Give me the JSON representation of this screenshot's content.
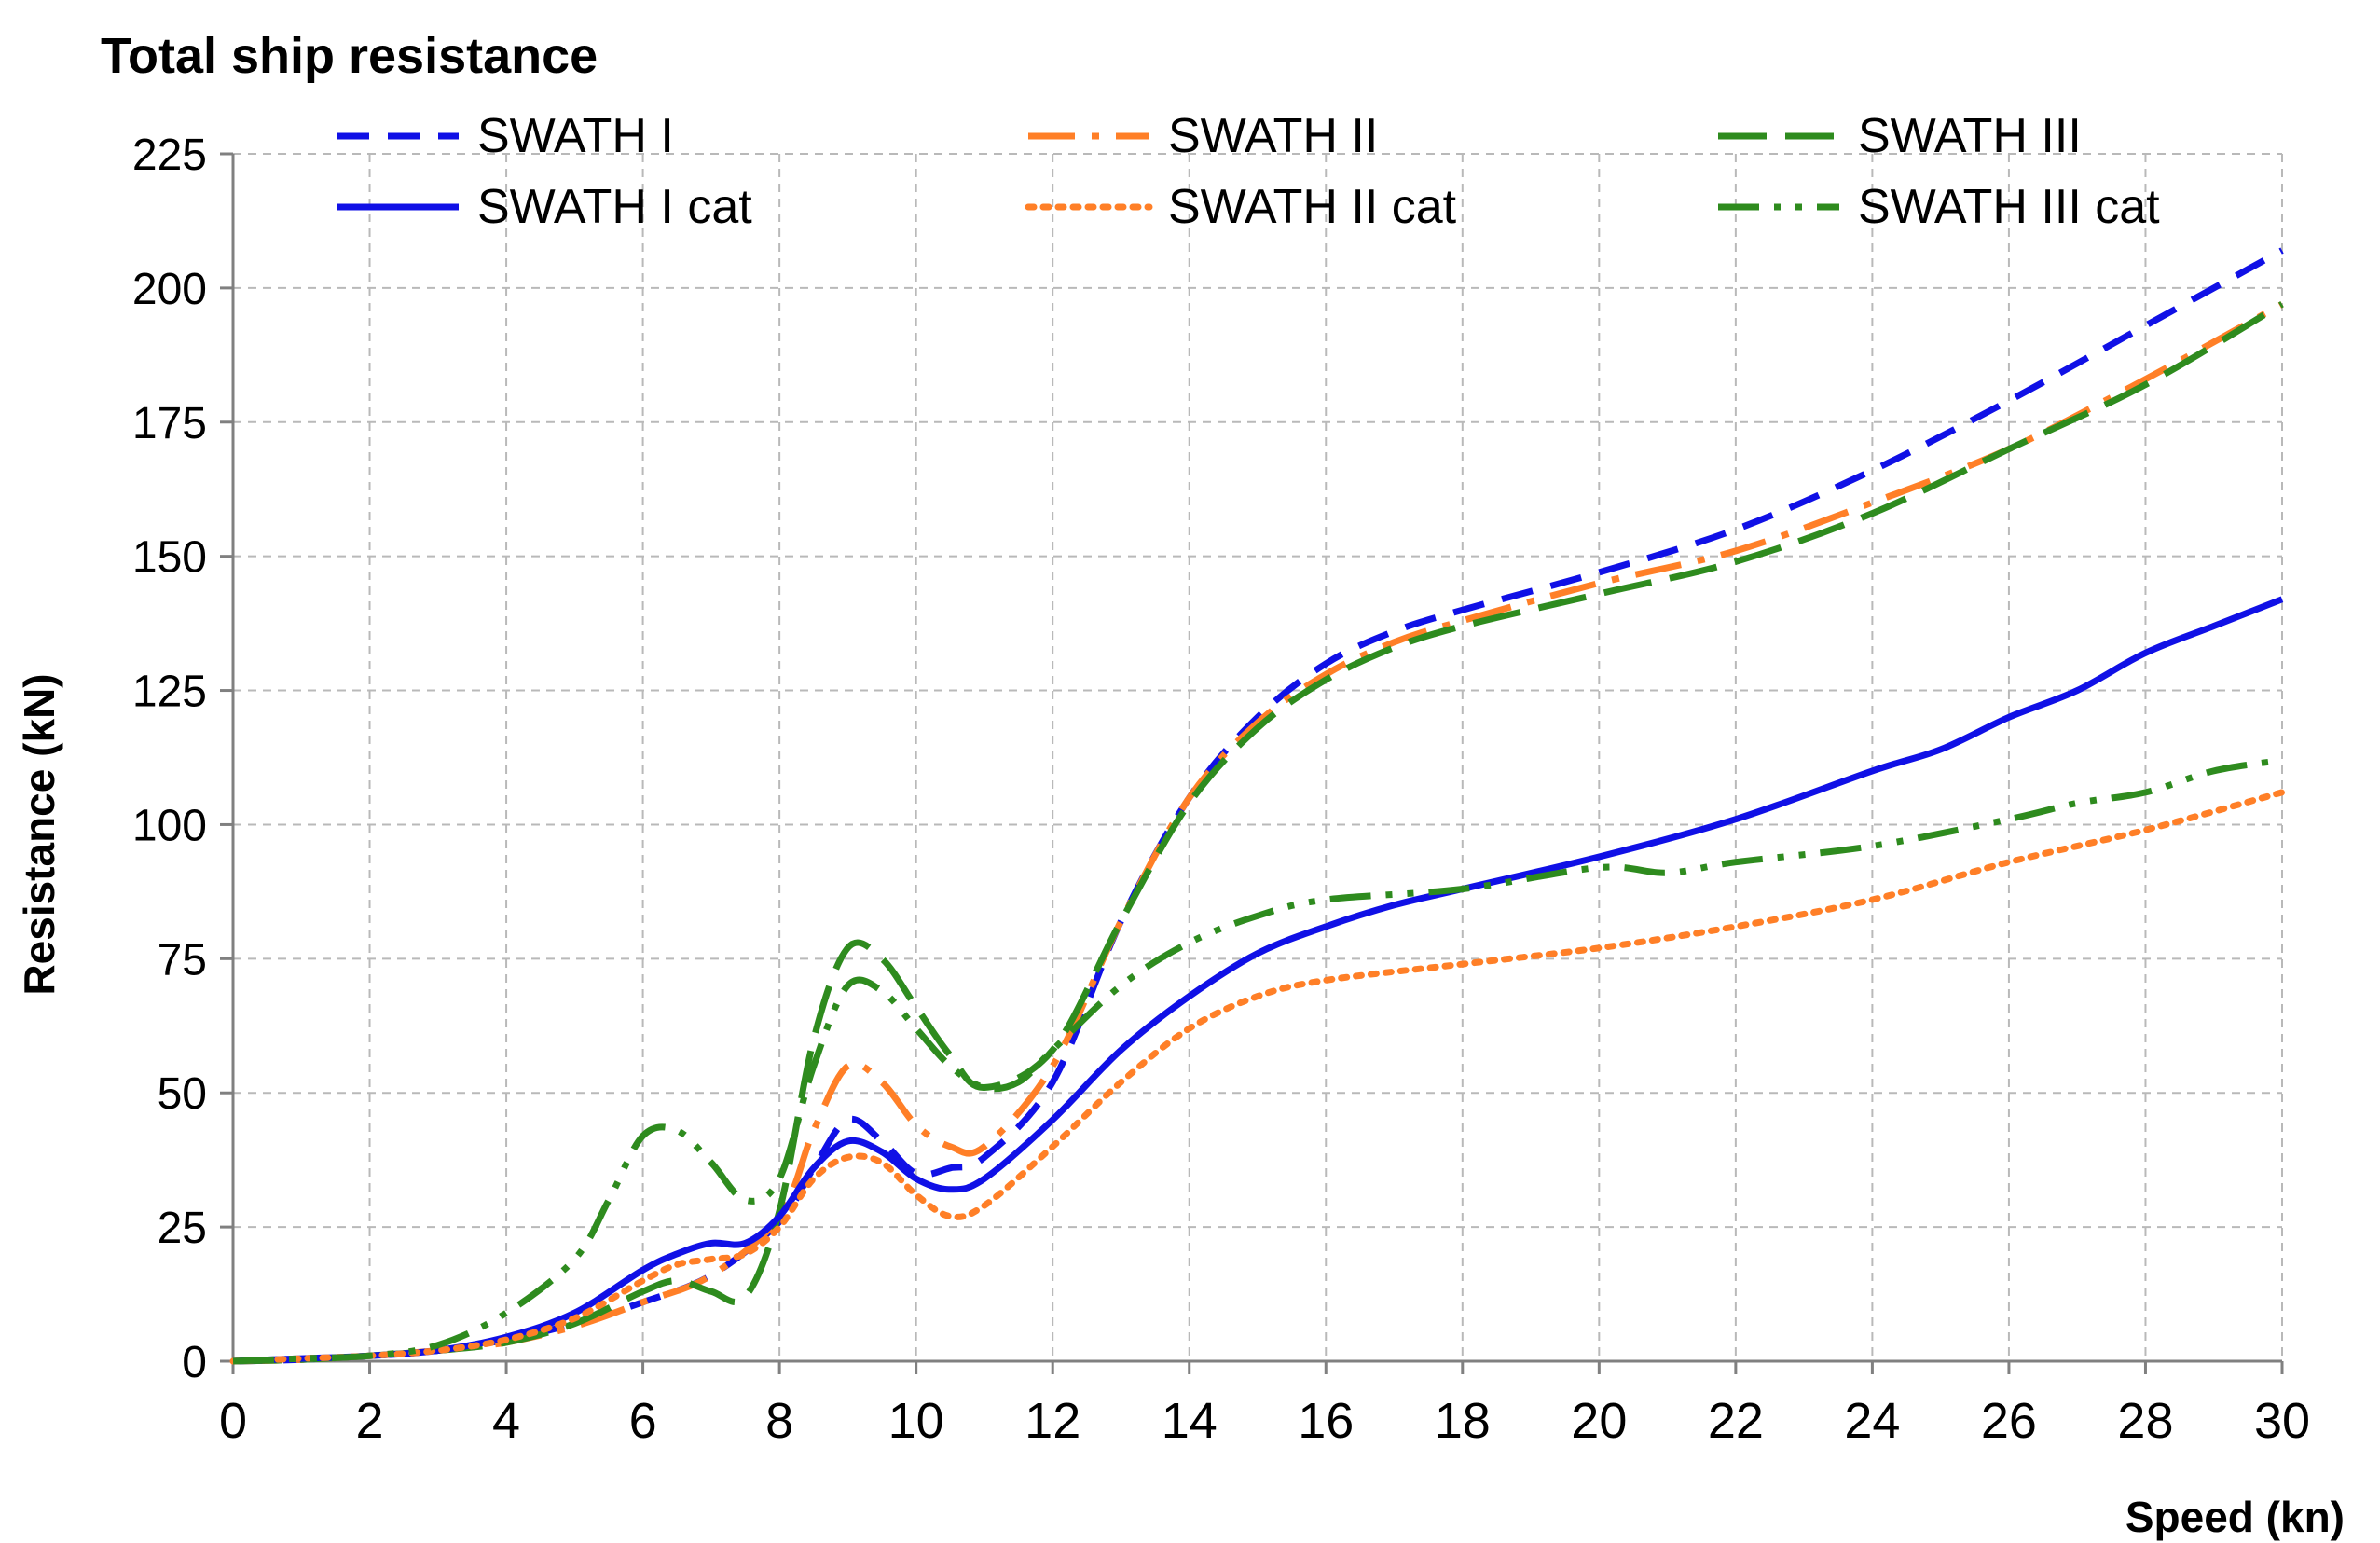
{
  "chart_data": {
    "type": "line",
    "title": "Total ship resistance",
    "xlabel": "Speed (kn)",
    "ylabel": "Resistance  (kN)",
    "xlim": [
      0,
      30
    ],
    "ylim": [
      0,
      225
    ],
    "xticks": [
      0,
      2,
      4,
      6,
      8,
      10,
      12,
      14,
      16,
      18,
      20,
      22,
      24,
      26,
      28,
      30
    ],
    "yticks": [
      0,
      25,
      50,
      75,
      100,
      125,
      150,
      175,
      200,
      225
    ],
    "grid": true,
    "legend_position": "top",
    "series": [
      {
        "name": "SWATH I",
        "color": "#1010e6",
        "style": "dashed",
        "x": [
          0,
          1,
          2,
          3,
          4,
          5,
          6,
          7,
          8,
          8.5,
          9,
          9.5,
          10,
          10.5,
          11,
          12,
          13,
          14,
          15,
          16,
          17,
          18,
          20,
          22,
          24,
          26,
          28,
          30
        ],
        "y": [
          0,
          0.3,
          1,
          2,
          4,
          7,
          11,
          16,
          26,
          36,
          45,
          41,
          35,
          36,
          38,
          52,
          82,
          105,
          120,
          130,
          136,
          140,
          147,
          155,
          166,
          179,
          193,
          207
        ]
      },
      {
        "name": "SWATH II",
        "color": "#ff7f27",
        "style": "long-dash-dot",
        "x": [
          0,
          1,
          2,
          3,
          4,
          5,
          6,
          7,
          8,
          8.5,
          9,
          9.5,
          10,
          10.5,
          11,
          12,
          13,
          14,
          15,
          16,
          17,
          18,
          20,
          22,
          24,
          26,
          28,
          30
        ],
        "y": [
          0,
          0.3,
          1,
          2,
          3.5,
          6.5,
          11,
          16,
          27,
          43,
          55,
          52,
          44,
          40,
          40,
          55,
          82,
          105,
          119,
          128,
          134,
          138,
          145,
          151,
          160,
          170,
          183,
          197
        ]
      },
      {
        "name": "SWATH III",
        "color": "#2e8b1e",
        "style": "long-dash",
        "x": [
          0,
          1,
          2,
          3,
          4,
          5,
          6,
          6.5,
          7,
          7.5,
          8,
          8.5,
          9,
          9.5,
          10,
          10.5,
          11,
          12,
          13,
          14,
          15,
          16,
          17,
          18,
          20,
          22,
          24,
          26,
          28,
          30
        ],
        "y": [
          0,
          0.3,
          1,
          2,
          3.5,
          7,
          13,
          15,
          13,
          12,
          28,
          60,
          77,
          75,
          66,
          57,
          51,
          58,
          82,
          104,
          118,
          127,
          133,
          137,
          143,
          149,
          158,
          170,
          182,
          197
        ]
      },
      {
        "name": "SWATH I cat",
        "color": "#1010e6",
        "style": "solid",
        "x": [
          0,
          1,
          2,
          3,
          4,
          5,
          6,
          6.5,
          7,
          7.5,
          8,
          8.5,
          9,
          9.5,
          10,
          10.5,
          11,
          12,
          13,
          14,
          15,
          16,
          17,
          18,
          20,
          22,
          24,
          25,
          26,
          27,
          28,
          29,
          30
        ],
        "y": [
          0,
          0.5,
          1,
          2,
          4.5,
          9,
          17,
          20,
          22,
          22,
          27,
          36,
          41,
          39,
          34,
          32,
          34,
          45,
          58,
          68,
          76,
          81,
          85,
          88,
          94,
          101,
          110,
          114,
          120,
          125,
          132,
          137,
          142
        ]
      },
      {
        "name": "SWATH II cat",
        "color": "#ff7f27",
        "style": "dotted",
        "x": [
          0,
          1,
          2,
          3,
          4,
          5,
          6,
          6.5,
          7,
          7.5,
          8,
          8.5,
          9,
          9.5,
          10,
          10.5,
          11,
          12,
          13,
          14,
          15,
          16,
          18,
          20,
          22,
          24,
          26,
          28,
          30
        ],
        "y": [
          0,
          0.5,
          1,
          2,
          4,
          8,
          15,
          18,
          19,
          20,
          25,
          34,
          38,
          37,
          31,
          27,
          29,
          40,
          52,
          62,
          68,
          71,
          74,
          77,
          81,
          86,
          93,
          99,
          106
        ]
      },
      {
        "name": "SWATH III cat",
        "color": "#2e8b1e",
        "style": "dash-dot-dot",
        "x": [
          0,
          1,
          2,
          3,
          4,
          5,
          5.5,
          6,
          6.5,
          7,
          7.5,
          8,
          8.5,
          9,
          9.5,
          10,
          10.5,
          11,
          11.5,
          12,
          13,
          14,
          15,
          16,
          18,
          20,
          21,
          22,
          24,
          26,
          27,
          28,
          29,
          30
        ],
        "y": [
          0,
          0.5,
          1,
          3,
          9,
          19,
          30,
          42,
          43,
          37,
          30,
          34,
          55,
          70,
          69,
          62,
          55,
          51,
          52,
          58,
          70,
          78,
          83,
          86,
          88,
          92,
          91,
          93,
          96,
          101,
          104,
          106,
          110,
          112
        ]
      }
    ]
  }
}
